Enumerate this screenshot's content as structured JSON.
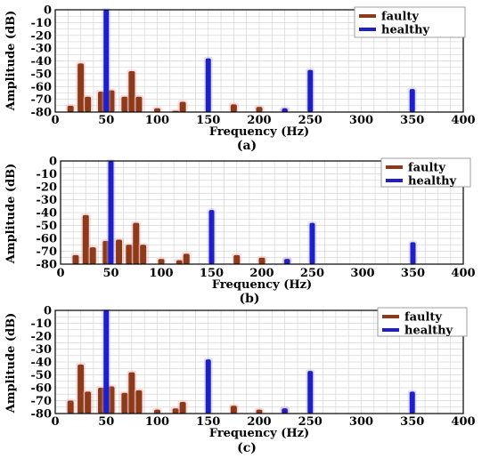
{
  "chart_data": [
    {
      "type": "bar",
      "panel_label": "(a)",
      "xlabel": "Frequency (Hz)",
      "ylabel": "Amplitude (dB)",
      "xlim": [
        0,
        400
      ],
      "ylim": [
        -80,
        0
      ],
      "xticks": [
        0,
        50,
        100,
        150,
        200,
        250,
        300,
        350,
        400
      ],
      "yticks": [
        0,
        -10,
        -20,
        -30,
        -40,
        -50,
        -60,
        -70,
        -80
      ],
      "grid": true,
      "legend_position": "top-right",
      "series": [
        {
          "name": "faulty",
          "color": "#8b3a1a",
          "points": [
            {
              "x": 15,
              "y": -75
            },
            {
              "x": 25,
              "y": -42
            },
            {
              "x": 32,
              "y": -68
            },
            {
              "x": 45,
              "y": -64
            },
            {
              "x": 55,
              "y": -63
            },
            {
              "x": 68,
              "y": -68
            },
            {
              "x": 75,
              "y": -48
            },
            {
              "x": 82,
              "y": -68
            },
            {
              "x": 100,
              "y": -77
            },
            {
              "x": 118,
              "y": -79
            },
            {
              "x": 125,
              "y": -72
            },
            {
              "x": 175,
              "y": -74
            },
            {
              "x": 200,
              "y": -76
            },
            {
              "x": 225,
              "y": -78
            }
          ]
        },
        {
          "name": "healthy",
          "color": "#1f1fc8",
          "points": [
            {
              "x": 50,
              "y": 0
            },
            {
              "x": 150,
              "y": -38
            },
            {
              "x": 225,
              "y": -77
            },
            {
              "x": 250,
              "y": -47
            },
            {
              "x": 350,
              "y": -62
            }
          ]
        }
      ]
    },
    {
      "type": "bar",
      "panel_label": "(b)",
      "xlabel": "Frequency (Hz)",
      "ylabel": "Amplitude (dB)",
      "xlim": [
        0,
        400
      ],
      "ylim": [
        -80,
        0
      ],
      "xticks": [
        0,
        50,
        100,
        150,
        200,
        250,
        300,
        350,
        400
      ],
      "yticks": [
        0,
        -10,
        -20,
        -30,
        -40,
        -50,
        -60,
        -70,
        -80
      ],
      "grid": true,
      "legend_position": "top-right",
      "series": [
        {
          "name": "faulty",
          "color": "#8b3a1a",
          "points": [
            {
              "x": 15,
              "y": -73
            },
            {
              "x": 25,
              "y": -42
            },
            {
              "x": 32,
              "y": -67
            },
            {
              "x": 45,
              "y": -62
            },
            {
              "x": 58,
              "y": -61
            },
            {
              "x": 68,
              "y": -65
            },
            {
              "x": 75,
              "y": -48
            },
            {
              "x": 82,
              "y": -65
            },
            {
              "x": 100,
              "y": -76
            },
            {
              "x": 118,
              "y": -77
            },
            {
              "x": 125,
              "y": -72
            },
            {
              "x": 175,
              "y": -73
            },
            {
              "x": 200,
              "y": -75
            },
            {
              "x": 225,
              "y": -76
            }
          ]
        },
        {
          "name": "healthy",
          "color": "#1f1fc8",
          "points": [
            {
              "x": 50,
              "y": 0
            },
            {
              "x": 150,
              "y": -38
            },
            {
              "x": 225,
              "y": -76
            },
            {
              "x": 250,
              "y": -48
            },
            {
              "x": 350,
              "y": -63
            }
          ]
        }
      ]
    },
    {
      "type": "bar",
      "panel_label": "(c)",
      "xlabel": "Frequency (Hz)",
      "ylabel": "Amplitude (dB)",
      "xlim": [
        0,
        400
      ],
      "ylim": [
        -80,
        0
      ],
      "xticks": [
        0,
        50,
        100,
        150,
        200,
        250,
        300,
        350,
        400
      ],
      "yticks": [
        0,
        -10,
        -20,
        -30,
        -40,
        -50,
        -60,
        -70,
        -80
      ],
      "grid": true,
      "legend_position": "top-right",
      "series": [
        {
          "name": "faulty",
          "color": "#8b3a1a",
          "points": [
            {
              "x": 15,
              "y": -70
            },
            {
              "x": 25,
              "y": -42
            },
            {
              "x": 32,
              "y": -63
            },
            {
              "x": 45,
              "y": -60
            },
            {
              "x": 55,
              "y": -59
            },
            {
              "x": 68,
              "y": -64
            },
            {
              "x": 75,
              "y": -48
            },
            {
              "x": 82,
              "y": -62
            },
            {
              "x": 100,
              "y": -77
            },
            {
              "x": 118,
              "y": -76
            },
            {
              "x": 125,
              "y": -71
            },
            {
              "x": 175,
              "y": -74
            },
            {
              "x": 200,
              "y": -77
            },
            {
              "x": 225,
              "y": -76
            }
          ]
        },
        {
          "name": "healthy",
          "color": "#1f1fc8",
          "points": [
            {
              "x": 50,
              "y": 0
            },
            {
              "x": 150,
              "y": -38
            },
            {
              "x": 225,
              "y": -76
            },
            {
              "x": 250,
              "y": -47
            },
            {
              "x": 350,
              "y": -63
            }
          ]
        }
      ]
    }
  ]
}
